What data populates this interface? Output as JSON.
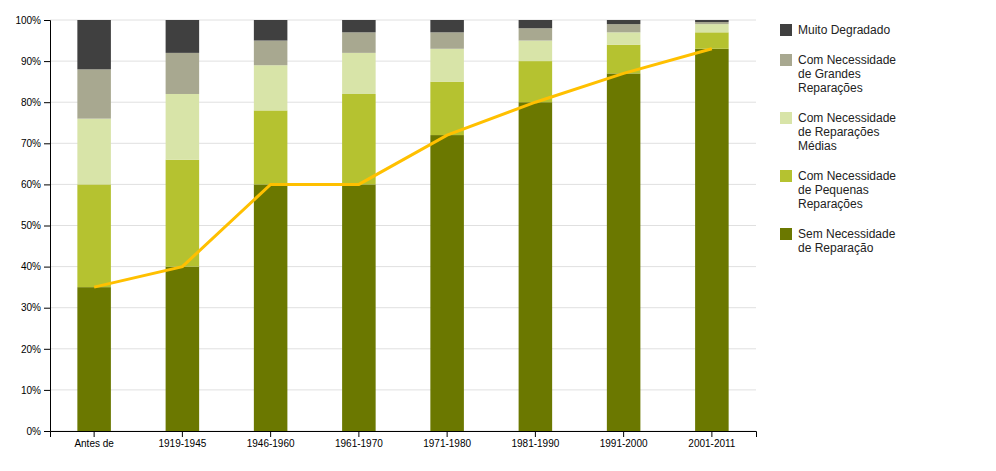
{
  "chart_data": {
    "type": "bar",
    "stacked": true,
    "categories": [
      "Antes de",
      "1919-1945",
      "1946-1960",
      "1961-1970",
      "1971-1980",
      "1981-1990",
      "1991-2000",
      "2001-2011"
    ],
    "series": [
      {
        "name": "Sem Necessidade\nde Reparação",
        "color": "#6b7800",
        "values": [
          35,
          40,
          60,
          60,
          72,
          80,
          87,
          93
        ]
      },
      {
        "name": "Com Necessidade\nde Pequenas\nReparações",
        "color": "#b5c230",
        "values": [
          25,
          26,
          18,
          22,
          13,
          10,
          7,
          4
        ]
      },
      {
        "name": "Com Necessidade\nde Reparações\nMédias",
        "color": "#d8e4a8",
        "values": [
          16,
          16,
          11,
          10,
          8,
          5,
          3,
          2
        ]
      },
      {
        "name": "Com Necessidade\nde Grandes\nReparações",
        "color": "#a8a890",
        "values": [
          12,
          10,
          6,
          5,
          4,
          3,
          2,
          0.5
        ]
      },
      {
        "name": "Muito Degradado",
        "color": "#404040",
        "values": [
          12,
          8,
          5,
          3,
          3,
          2,
          1,
          0.5
        ]
      },
      {
        "type": "line",
        "color": "#ffc000",
        "values": [
          35,
          40,
          60,
          60,
          72,
          80,
          87,
          93
        ]
      }
    ],
    "ylim": [
      0,
      100
    ],
    "yticks": [
      {
        "value": 0,
        "label": "0%"
      },
      {
        "value": 10,
        "label": "10%"
      },
      {
        "value": 20,
        "label": "20%"
      },
      {
        "value": 30,
        "label": "30%"
      },
      {
        "value": 40,
        "label": "40%"
      },
      {
        "value": 50,
        "label": "50%"
      },
      {
        "value": 60,
        "label": "60%"
      },
      {
        "value": 70,
        "label": "70%"
      },
      {
        "value": 80,
        "label": "80%"
      },
      {
        "value": 90,
        "label": "90%"
      },
      {
        "value": 100,
        "label": "100%"
      }
    ],
    "grid": true,
    "legend": "right"
  }
}
